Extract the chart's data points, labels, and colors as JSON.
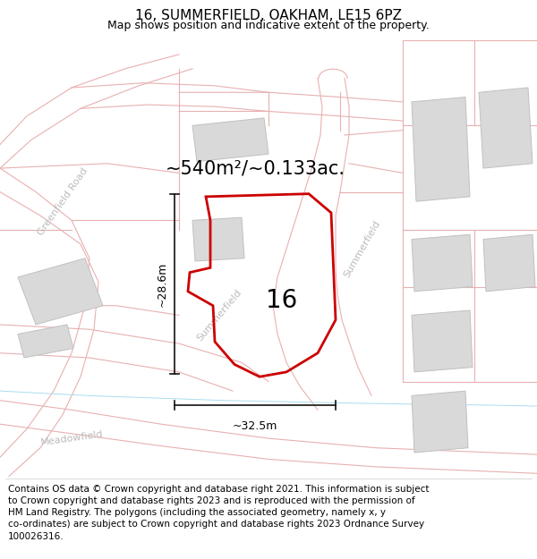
{
  "title": "16, SUMMERFIELD, OAKHAM, LE15 6PZ",
  "subtitle": "Map shows position and indicative extent of the property.",
  "footer": "Contains OS data © Crown copyright and database right 2021. This information is subject\nto Crown copyright and database rights 2023 and is reproduced with the permission of\nHM Land Registry. The polygons (including the associated geometry, namely x, y\nco-ordinates) are subject to Crown copyright and database rights 2023 Ordnance Survey\n100026316.",
  "area_label": "~540m²/~0.133ac.",
  "number_label": "16",
  "dim_width": "~32.5m",
  "dim_height": "~28.6m",
  "map_bg": "#f7f7f7",
  "road_fill": "#f2dede",
  "road_stroke": "#e8b8b8",
  "building_fill": "#d9d9d9",
  "building_stroke": "#c0c0c0",
  "prop_color": "#cc0000",
  "prop_lw": 2.0,
  "dim_color": "#111111",
  "road_label_color": "#bbbbbb",
  "title_fs": 11,
  "subtitle_fs": 9,
  "footer_fs": 7.5,
  "area_fs": 15,
  "number_fs": 20,
  "dim_fs": 9
}
